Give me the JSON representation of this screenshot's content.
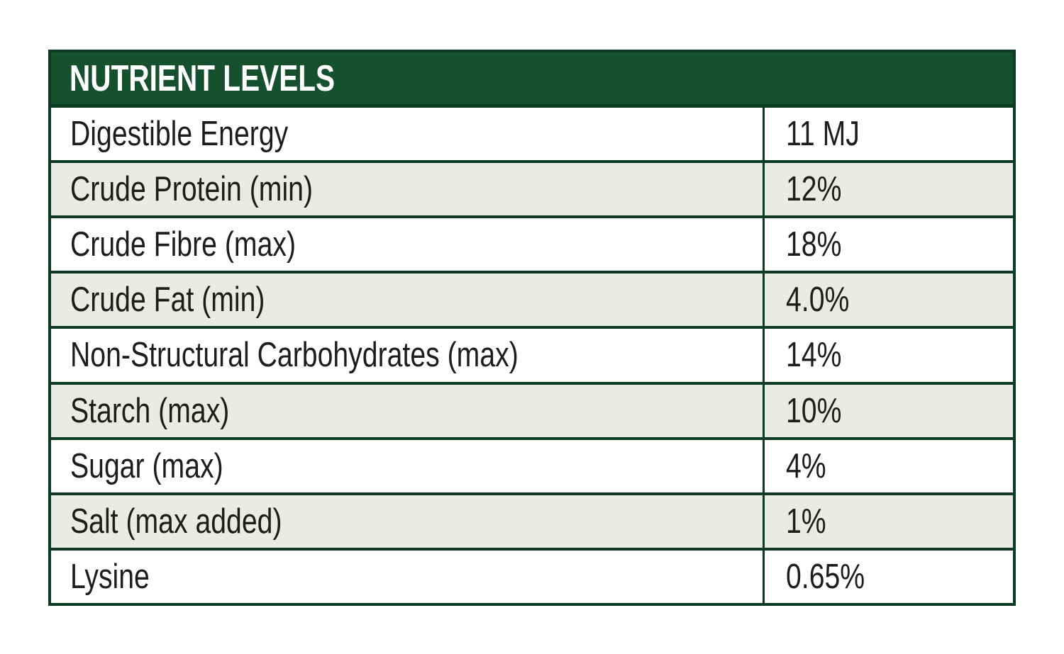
{
  "colors": {
    "header_bg": "#15512e",
    "border": "#0c3a23",
    "row_bg": "#ffffff",
    "row_alt_bg": "#e8ebe6",
    "header_text": "#ffffff",
    "text": "#1d1d1b",
    "page_bg": "#ffffff"
  },
  "table": {
    "header": "NUTRIENT LEVELS",
    "rows": [
      {
        "label": "Digestible Energy",
        "value": "11 MJ"
      },
      {
        "label": "Crude Protein (min)",
        "value": "12%"
      },
      {
        "label": "Crude Fibre (max)",
        "value": "18%"
      },
      {
        "label": "Crude Fat (min)",
        "value": "4.0%"
      },
      {
        "label": "Non-Structural Carbohydrates (max)",
        "value": "14%"
      },
      {
        "label": "Starch (max)",
        "value": "10%"
      },
      {
        "label": "Sugar (max)",
        "value": "4%"
      },
      {
        "label": "Salt (max added)",
        "value": "1%"
      },
      {
        "label": "Lysine",
        "value": "0.65%"
      }
    ]
  },
  "chart_data": {
    "type": "table",
    "title": "NUTRIENT LEVELS",
    "categories": [
      "Digestible Energy",
      "Crude Protein (min)",
      "Crude Fibre (max)",
      "Crude Fat (min)",
      "Non-Structural Carbohydrates (max)",
      "Starch (max)",
      "Sugar (max)",
      "Salt (max added)",
      "Lysine"
    ],
    "values": [
      "11 MJ",
      "12%",
      "18%",
      "4.0%",
      "14%",
      "10%",
      "4%",
      "1%",
      "0.65%"
    ]
  }
}
